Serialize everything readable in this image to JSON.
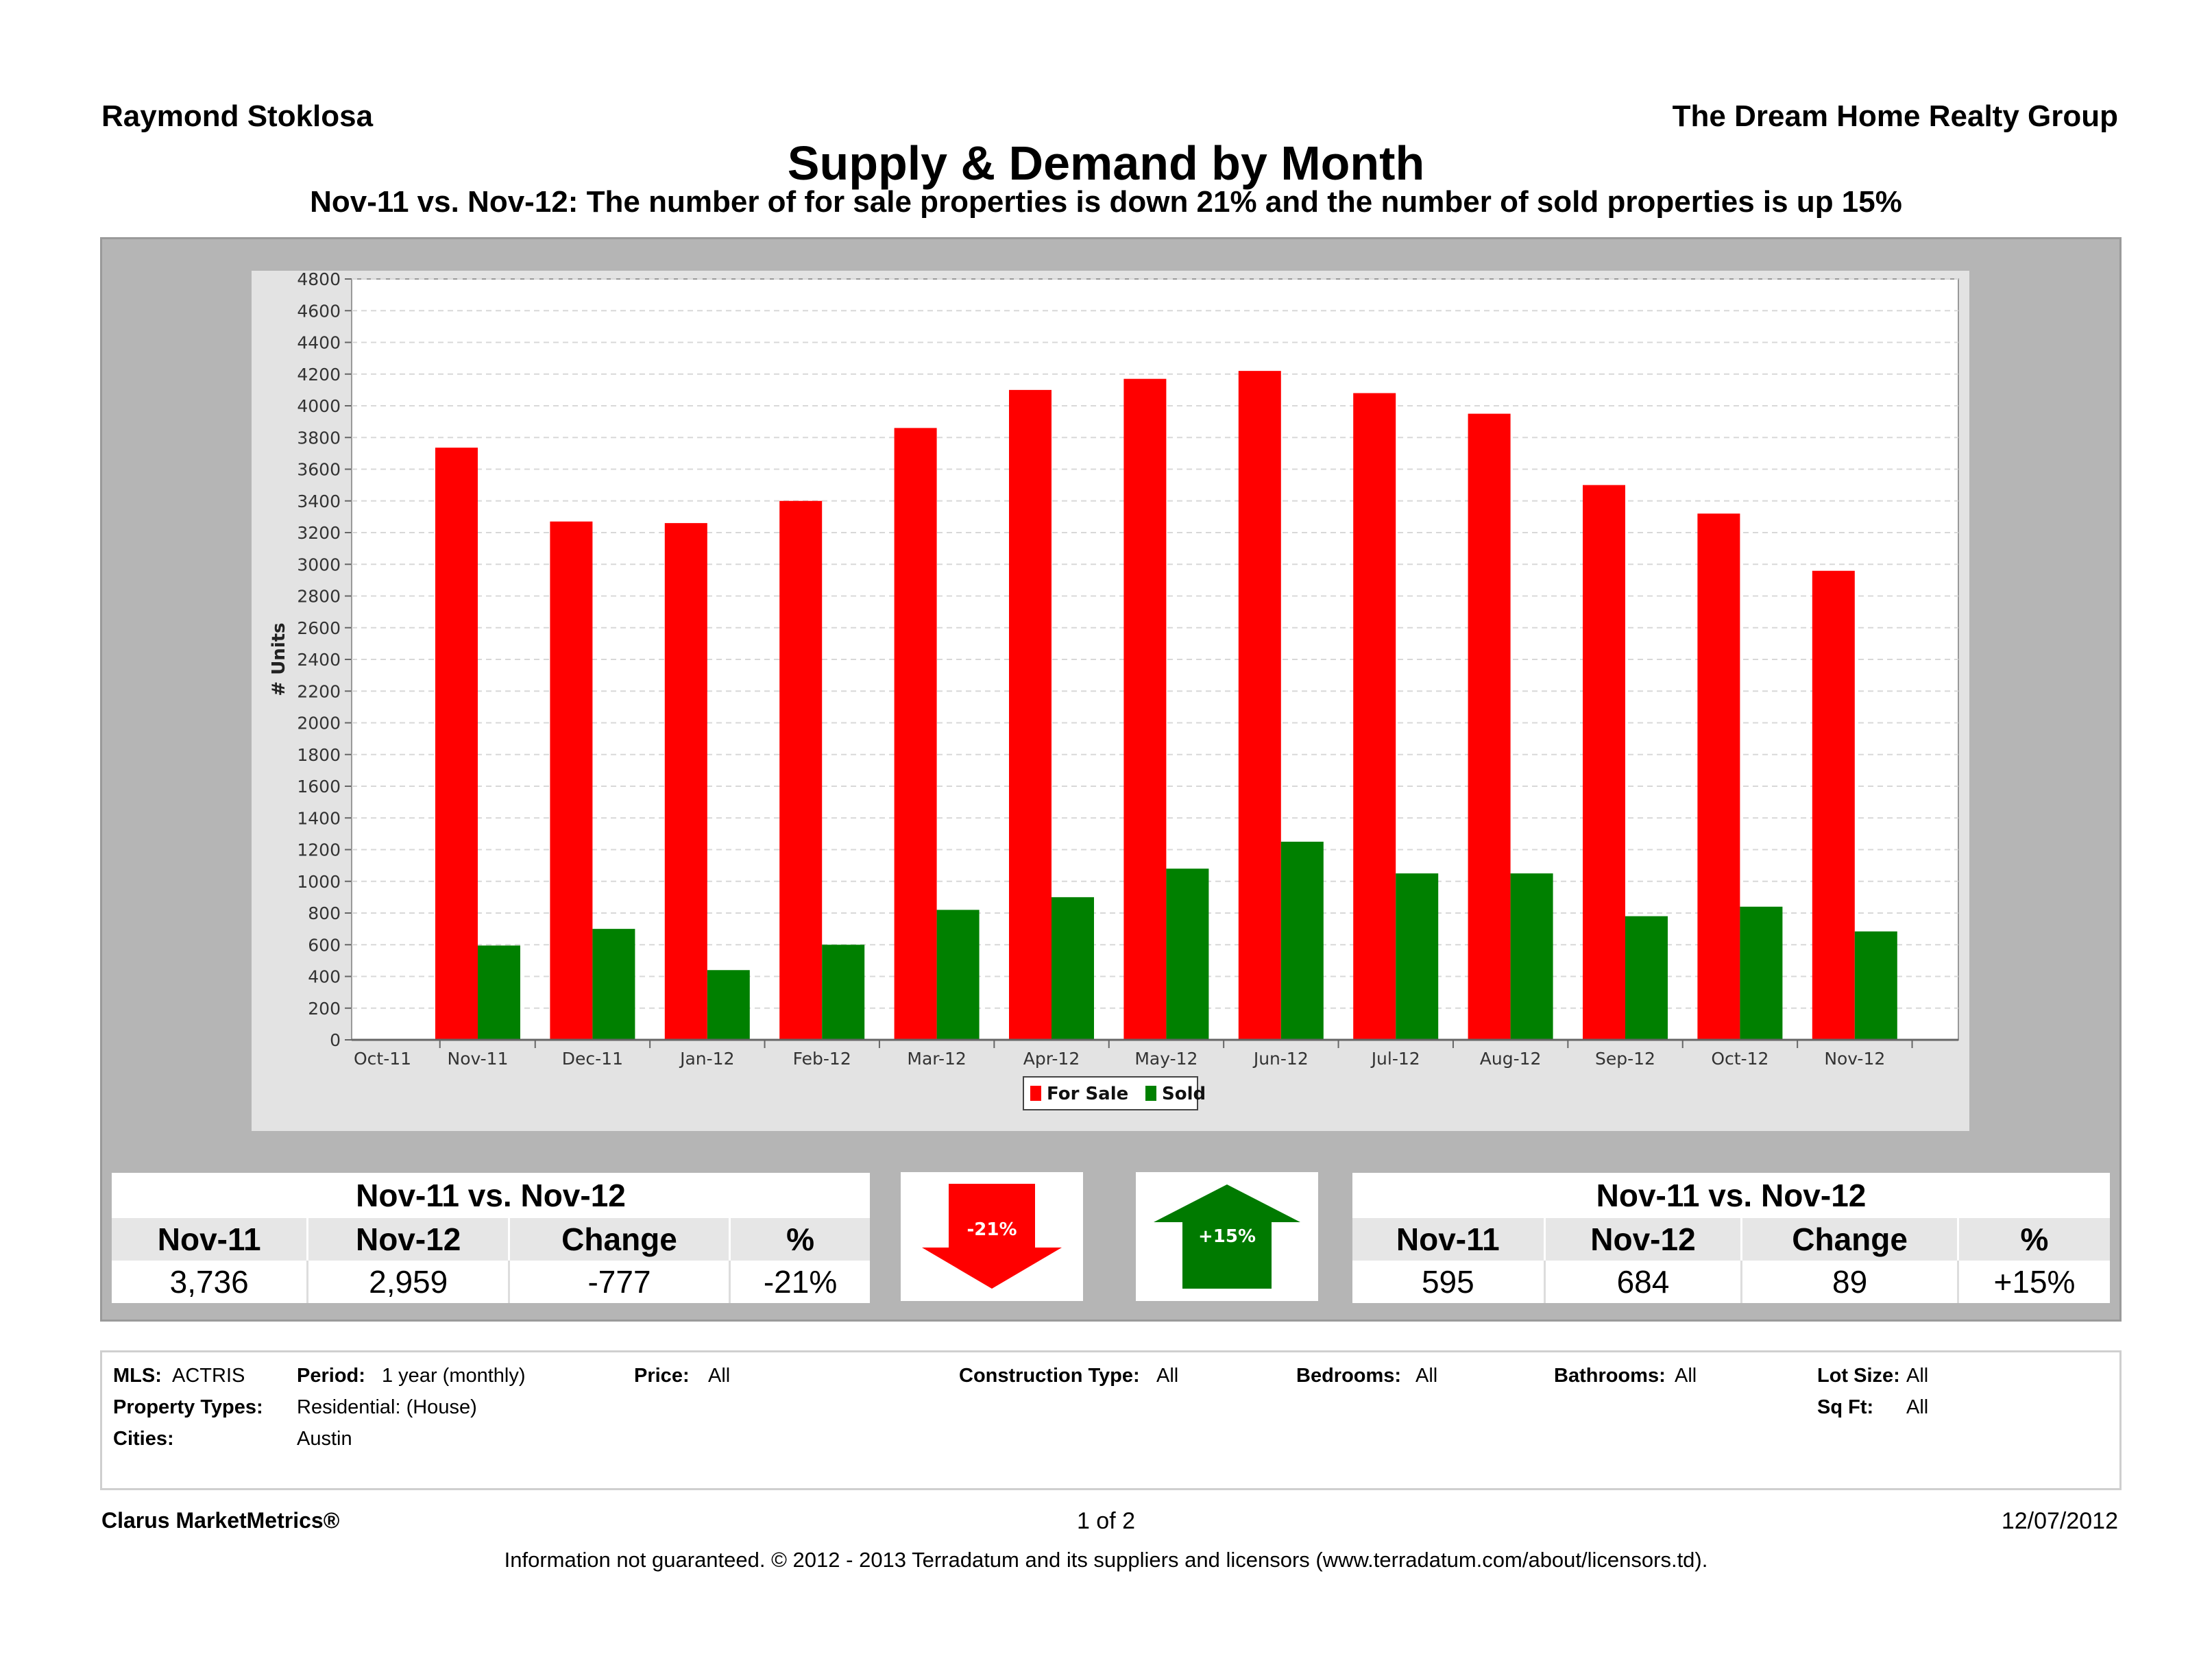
{
  "header": {
    "agent": "Raymond Stoklosa",
    "company": "The Dream Home Realty Group",
    "title": "Supply & Demand by Month",
    "subtitle": "Nov-11 vs. Nov-12:  The number of for sale properties is down 21% and the number of sold properties is up 15%"
  },
  "chart_data": {
    "type": "bar",
    "ylabel": "# Units",
    "xlabel": "",
    "ylim": [
      0,
      4800
    ],
    "yticks": [
      0,
      200,
      400,
      600,
      800,
      1000,
      1200,
      1400,
      1600,
      1800,
      2000,
      2200,
      2400,
      2600,
      2800,
      3000,
      3200,
      3400,
      3600,
      3800,
      4000,
      4200,
      4400,
      4600,
      4800
    ],
    "categories": [
      "Oct-11",
      "Nov-11",
      "Dec-11",
      "Jan-12",
      "Feb-12",
      "Mar-12",
      "Apr-12",
      "May-12",
      "Jun-12",
      "Jul-12",
      "Aug-12",
      "Sep-12",
      "Oct-12",
      "Nov-12"
    ],
    "series": [
      {
        "name": "For Sale",
        "color": "#ff0000",
        "values": [
          null,
          3736,
          3270,
          3260,
          3400,
          3860,
          4100,
          4170,
          4220,
          4080,
          3950,
          3500,
          3320,
          2959
        ]
      },
      {
        "name": "Sold",
        "color": "#008000",
        "values": [
          null,
          595,
          700,
          440,
          600,
          820,
          900,
          1080,
          1250,
          1050,
          1050,
          780,
          840,
          684
        ]
      }
    ],
    "legend_position": "bottom-center",
    "grid": true
  },
  "summary_left": {
    "title": "Nov-11 vs. Nov-12",
    "columns": [
      "Nov-11",
      "Nov-12",
      "Change",
      "%"
    ],
    "values": [
      "3,736",
      "2,959",
      "-777",
      "-21%"
    ]
  },
  "summary_right": {
    "title": "Nov-11 vs. Nov-12",
    "columns": [
      "Nov-11",
      "Nov-12",
      "Change",
      "%"
    ],
    "values": [
      "595",
      "684",
      "89",
      "+15%"
    ]
  },
  "arrows": {
    "down_label": "-21%",
    "down_color": "#ff0000",
    "up_label": "+15%",
    "up_color": "#007a00"
  },
  "criteria": {
    "mls_label": "MLS:",
    "mls_value": "ACTRIS",
    "period_label": "Period:",
    "period_value": "1 year (monthly)",
    "price_label": "Price:",
    "price_value": "All",
    "construction_label": "Construction Type:",
    "construction_value": "All",
    "bedrooms_label": "Bedrooms:",
    "bedrooms_value": "All",
    "bathrooms_label": "Bathrooms:",
    "bathrooms_value": "All",
    "lotsize_label": "Lot Size:",
    "lotsize_value": "All",
    "proptype_label": "Property Types:",
    "proptype_value": "Residential: (House)",
    "sqft_label": "Sq Ft:",
    "sqft_value": "All",
    "cities_label": "Cities:",
    "cities_value": "Austin"
  },
  "footer": {
    "brand": "Clarus MarketMetrics®",
    "page": "1 of 2",
    "date": "12/07/2012",
    "disclaimer": "Information not guaranteed.  © 2012 - 2013 Terradatum and its suppliers and licensors (www.terradatum.com/about/licensors.td)."
  }
}
